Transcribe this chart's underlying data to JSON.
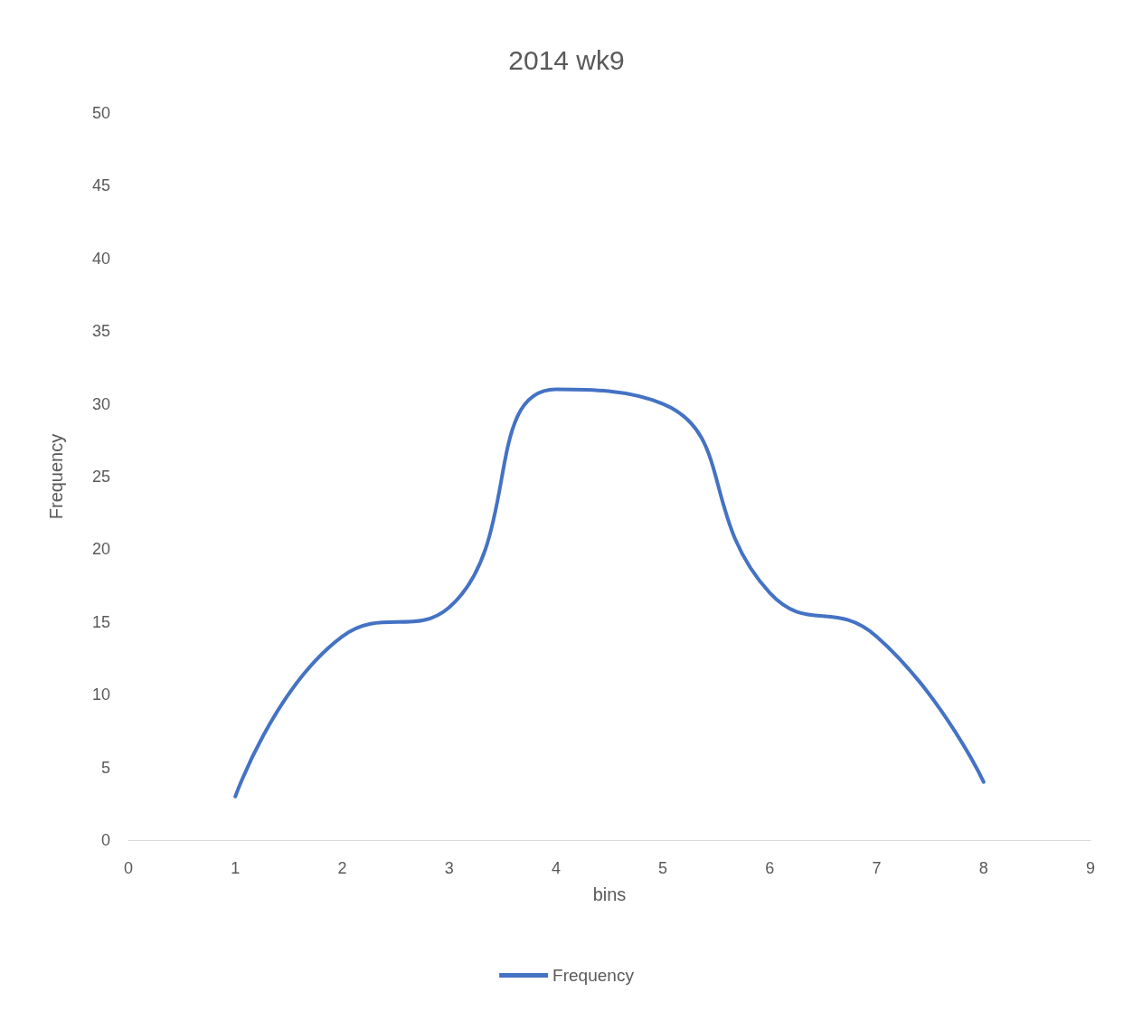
{
  "chart_data": {
    "type": "line",
    "title": "2014 wk9",
    "xlabel": "bins",
    "ylabel": "Frequency",
    "x": [
      1,
      2,
      3,
      4,
      5,
      6,
      7,
      8
    ],
    "series": [
      {
        "name": "Frequency",
        "color": "#4472c4",
        "values": [
          3,
          14,
          16,
          31,
          30,
          17,
          14,
          4
        ]
      }
    ],
    "xlim": [
      0,
      9
    ],
    "xticks": [
      0,
      1,
      2,
      3,
      4,
      5,
      6,
      7,
      8,
      9
    ],
    "ylim": [
      0,
      50
    ],
    "yticks": [
      0,
      5,
      10,
      15,
      20,
      25,
      30,
      35,
      40,
      45,
      50
    ],
    "grid": false,
    "legend": "bottom",
    "marker": "none",
    "line_style": "solid"
  }
}
